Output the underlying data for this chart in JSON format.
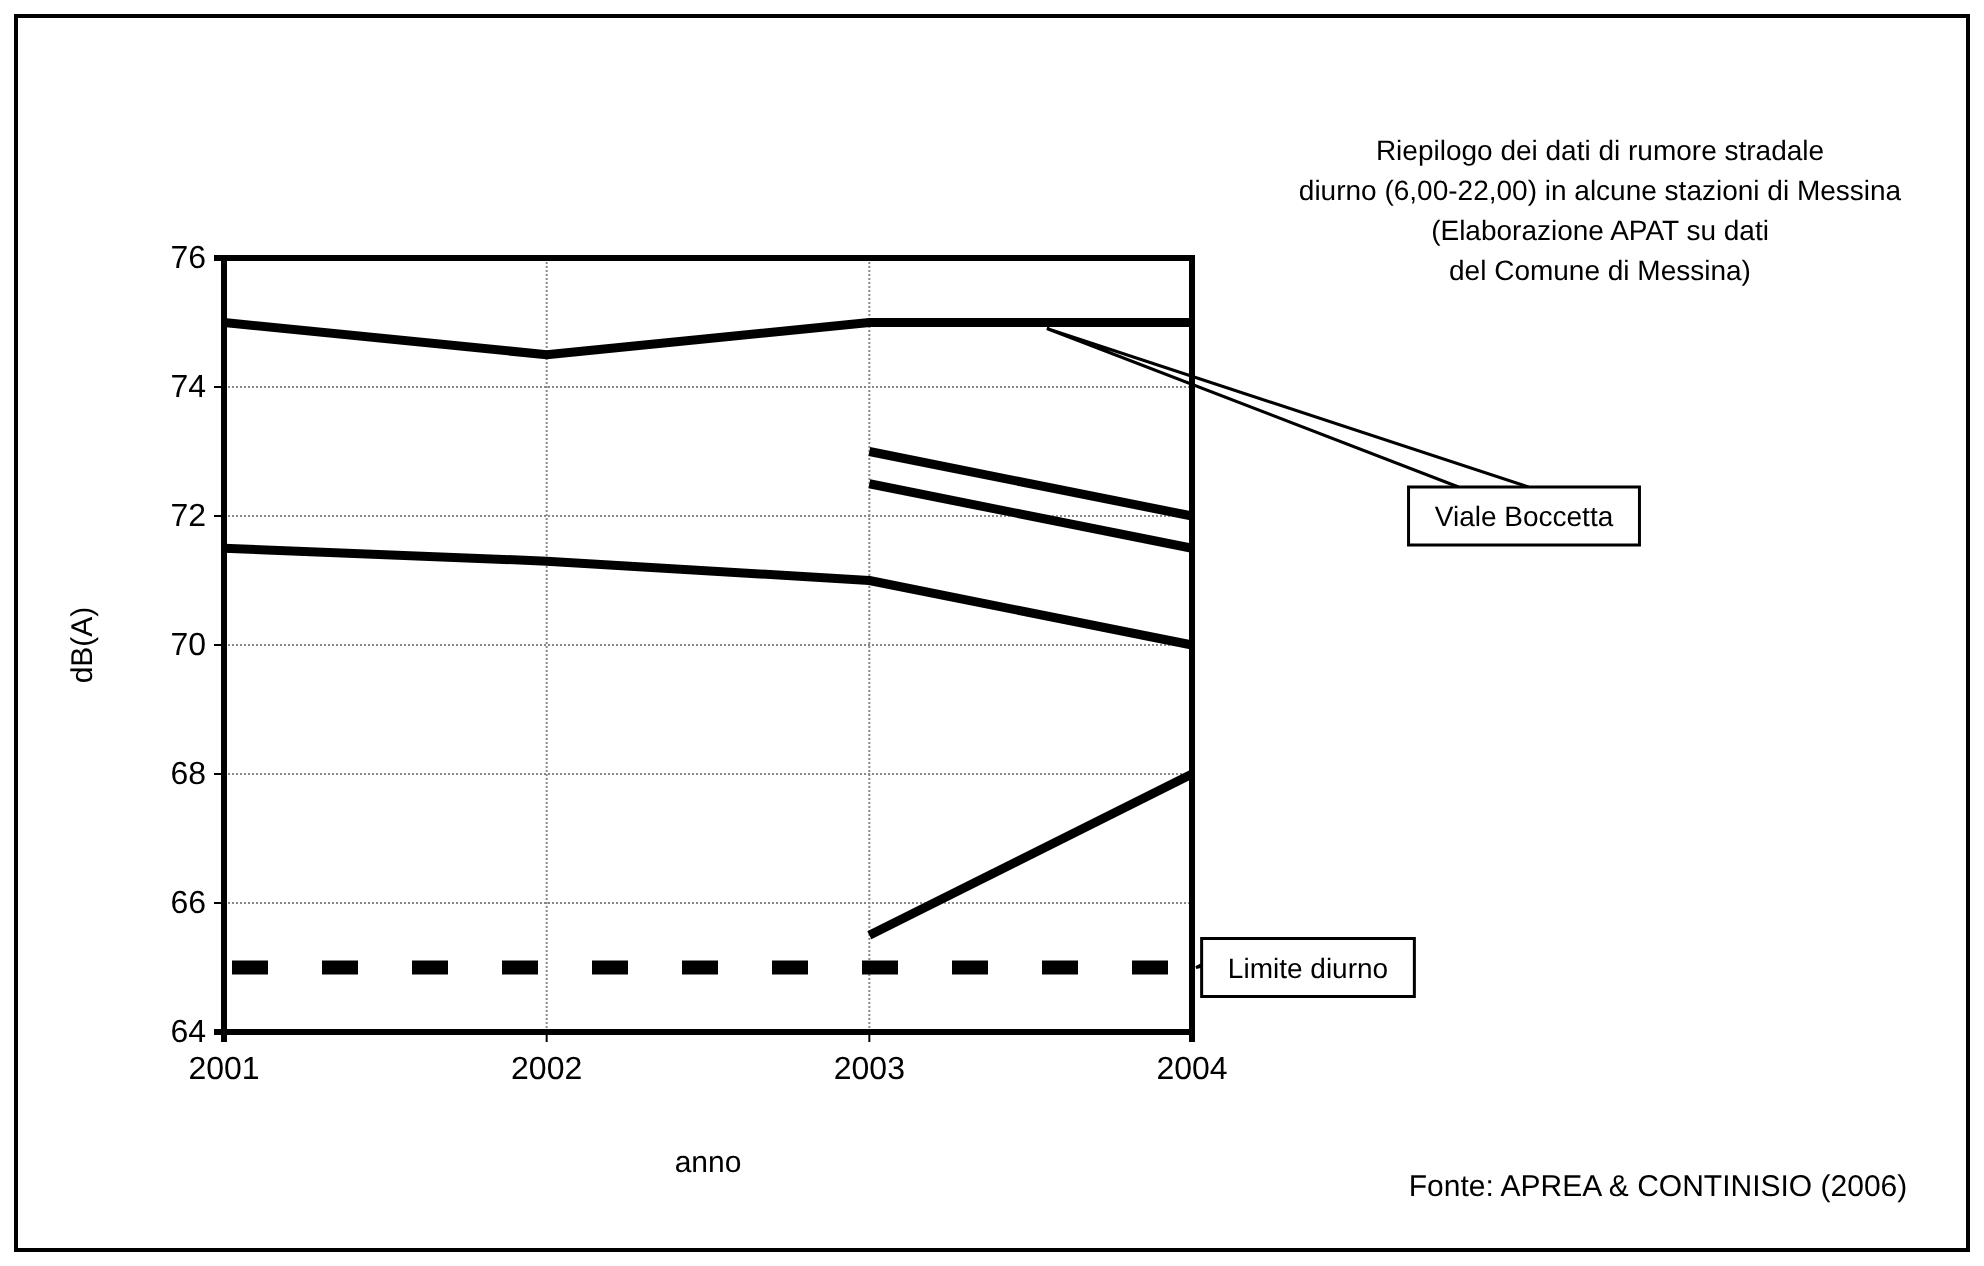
{
  "chart_data": {
    "type": "line",
    "title": "Riepilogo dei dati di rumore stradale\ndiurno (6,00-22,00) in alcune stazioni di Messina",
    "subtitle": "(Elaborazione APAT su dati\ndel Comune di Messina)",
    "xlabel": "anno",
    "ylabel": "dB(A)",
    "x": [
      2001,
      2002,
      2003,
      2004
    ],
    "xlim": [
      2001,
      2004
    ],
    "xticks": [
      2001,
      2002,
      2003,
      2004
    ],
    "ylim": [
      64,
      76
    ],
    "yticks": [
      64,
      66,
      68,
      70,
      72,
      74,
      76
    ],
    "grid": true,
    "series": [
      {
        "name": "Viale Boccetta",
        "color": "#000000",
        "values": [
          75,
          74.5,
          75,
          75
        ]
      },
      {
        "color": "#000000",
        "values": [
          null,
          null,
          73,
          72
        ]
      },
      {
        "color": "#000000",
        "values": [
          null,
          null,
          72.5,
          71.5
        ]
      },
      {
        "color": "#000000",
        "values": [
          71.5,
          71.3,
          71,
          70
        ]
      },
      {
        "color": "#000000",
        "values": [
          null,
          null,
          65.5,
          68
        ]
      }
    ],
    "ref_lines": [
      {
        "axis": "y",
        "value": 65,
        "label": "Limite diurno",
        "color": "#000000",
        "line_style": "dashed"
      }
    ],
    "annotations": [
      "Fonte: APREA & CONTINISIO (2006)"
    ]
  }
}
